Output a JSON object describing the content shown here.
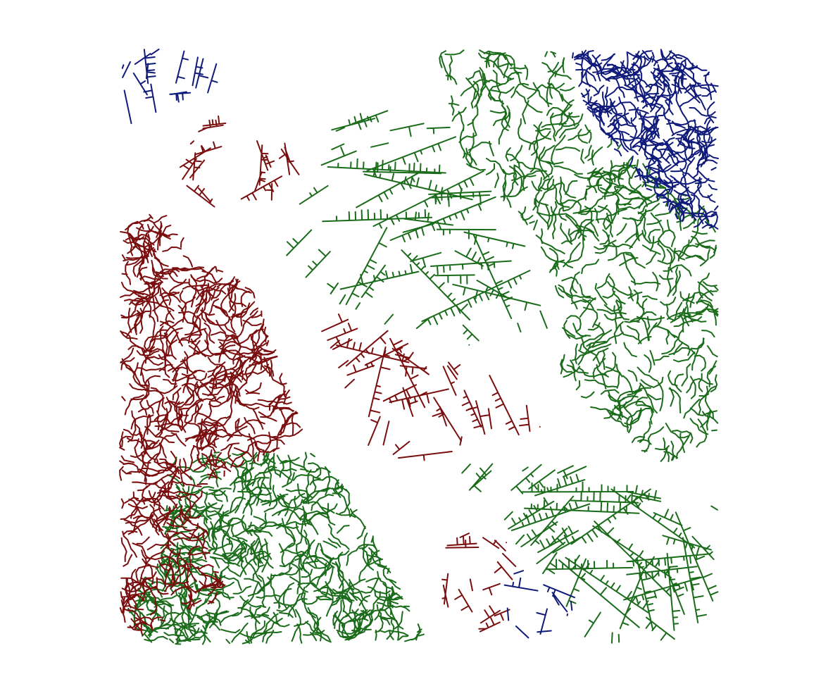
{
  "artwork": {
    "background": "#ffffff",
    "colors": {
      "green": "#1a6b1a",
      "red": "#7a0e0e",
      "blue": "#0f1a7a"
    },
    "regions": [
      {
        "name": "green-top-fan",
        "color": "green",
        "style": "fan"
      },
      {
        "name": "green-right-field",
        "color": "green",
        "style": "squiggle"
      },
      {
        "name": "green-bottom-left-field",
        "color": "green",
        "style": "squiggle"
      },
      {
        "name": "green-bottom-right-fan",
        "color": "green",
        "style": "fan"
      },
      {
        "name": "red-left-field",
        "color": "red",
        "style": "squiggle"
      },
      {
        "name": "red-top-fan",
        "color": "red",
        "style": "fan"
      },
      {
        "name": "red-center-fan",
        "color": "red",
        "style": "fan"
      },
      {
        "name": "red-bottom-fan",
        "color": "red",
        "style": "fan"
      },
      {
        "name": "blue-top-right-field",
        "color": "blue",
        "style": "squiggle"
      },
      {
        "name": "blue-top-left-fan",
        "color": "blue",
        "style": "fan"
      },
      {
        "name": "blue-bottom-fan",
        "color": "blue",
        "style": "fan"
      }
    ]
  }
}
